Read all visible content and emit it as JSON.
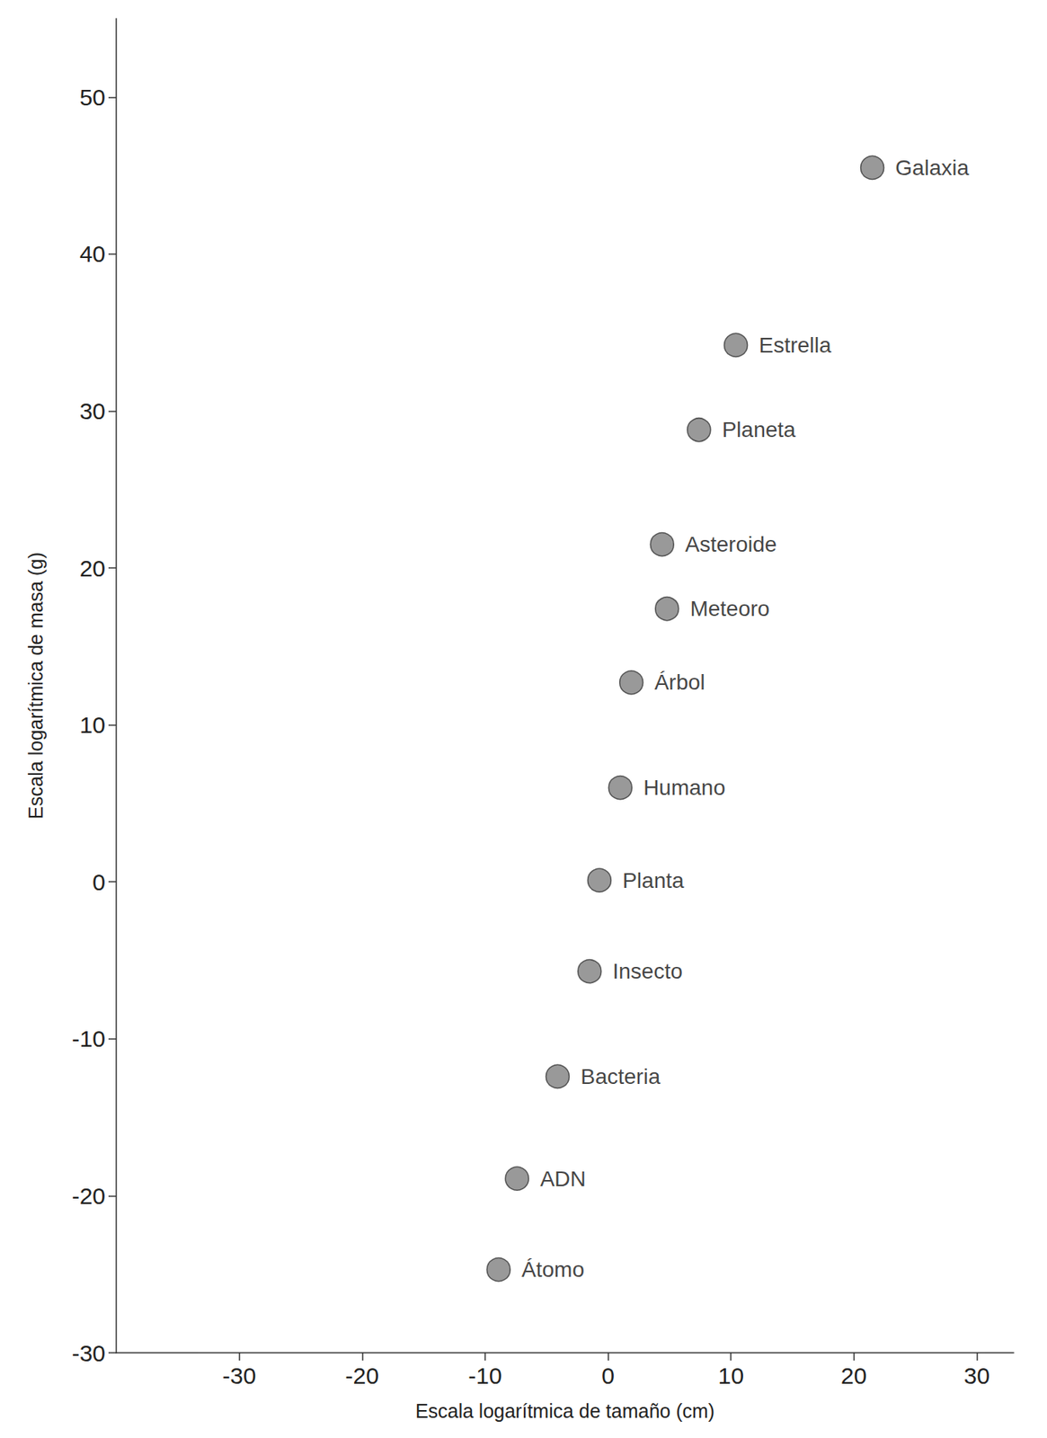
{
  "chart_data": {
    "type": "scatter",
    "xlabel": "Escala logarítmica de tamaño (cm)",
    "ylabel": "Escala logarítmica de masa (g)",
    "x": [
      21.5,
      10.4,
      7.4,
      4.4,
      4.8,
      1.9,
      1.0,
      -0.7,
      -1.5,
      -4.1,
      -7.4,
      -8.9
    ],
    "values": [
      45.5,
      34.2,
      28.8,
      21.5,
      17.4,
      12.7,
      6.0,
      0.1,
      -5.7,
      -12.4,
      -18.9,
      -24.7
    ],
    "labels": [
      "Galaxia",
      "Estrella",
      "Planeta",
      "Asteroide",
      "Meteoro",
      "Árbol",
      "Humano",
      "Planta",
      "Insecto",
      "Bacteria",
      "ADN",
      "Átomo"
    ],
    "color": "#808080",
    "marker": "circle",
    "xlim": [
      -40,
      33
    ],
    "xticks": [
      -30,
      -20,
      -10,
      0,
      10,
      20,
      30
    ],
    "ylim": [
      -30,
      55
    ],
    "yticks": [
      -30,
      -20,
      -10,
      0,
      10,
      20,
      30,
      40,
      50
    ],
    "grid": false
  }
}
